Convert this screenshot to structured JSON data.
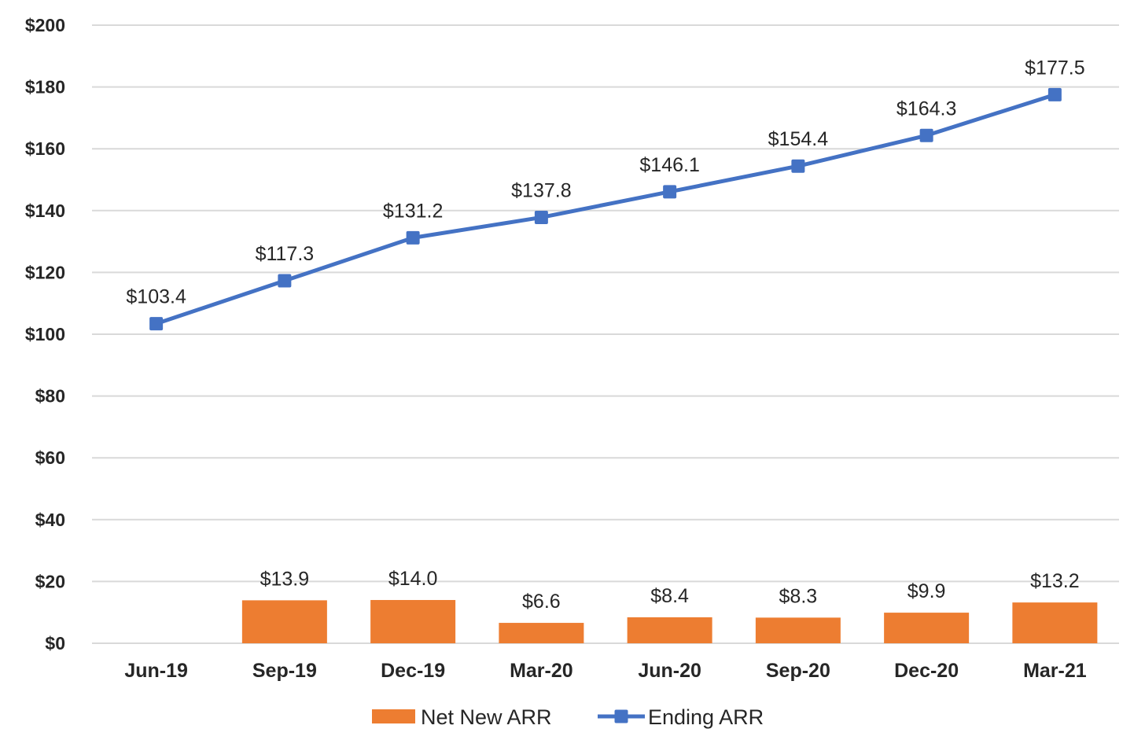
{
  "chart_data": {
    "type": "bar",
    "categories": [
      "Jun-19",
      "Sep-19",
      "Dec-19",
      "Mar-20",
      "Jun-20",
      "Sep-20",
      "Dec-20",
      "Mar-21"
    ],
    "series": [
      {
        "name": "Net New ARR",
        "kind": "bar",
        "color": "#ED7D31",
        "values": [
          null,
          13.9,
          14.0,
          6.6,
          8.4,
          8.3,
          9.9,
          13.2
        ],
        "labels": [
          "",
          "$13.9",
          "$14.0",
          "$6.6",
          "$8.4",
          "$8.3",
          "$9.9",
          "$13.2"
        ]
      },
      {
        "name": "Ending ARR",
        "kind": "line",
        "marker": "square",
        "color": "#4472C4",
        "values": [
          103.4,
          117.3,
          131.2,
          137.8,
          146.1,
          154.4,
          164.3,
          177.5
        ],
        "labels": [
          "$103.4",
          "$117.3",
          "$131.2",
          "$137.8",
          "$146.1",
          "$154.4",
          "$164.3",
          "$177.5"
        ]
      }
    ],
    "ylim": [
      0,
      200
    ],
    "yticks": [
      0,
      20,
      40,
      60,
      80,
      100,
      120,
      140,
      160,
      180,
      200
    ],
    "ytick_labels": [
      "$0",
      "$20",
      "$40",
      "$60",
      "$80",
      "$100",
      "$120",
      "$140",
      "$160",
      "$180",
      "$200"
    ],
    "title": "",
    "xlabel": "",
    "ylabel": "",
    "grid": true,
    "legend_position": "bottom-center"
  },
  "colors": {
    "gridline": "#D9D9D9",
    "axis_text": "#262626"
  }
}
